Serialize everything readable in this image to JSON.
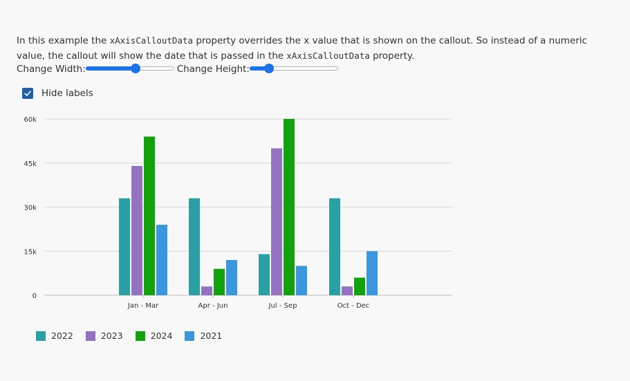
{
  "description": {
    "part1": "In this example the ",
    "code1": "xAxisCalloutData",
    "part2": " property overrides the x value that is shown on the callout. So instead of a numeric value, the callout will show the date that is passed in the ",
    "code2": "xAxisCalloutData",
    "part3": " property."
  },
  "controls": {
    "width_label": "Change Width:",
    "width_value": 0.56,
    "height_label": "Change Height:",
    "height_value": 0.22
  },
  "checkbox": {
    "label": "Hide labels",
    "checked": true,
    "check_icon": "checkmark-icon"
  },
  "colors": {
    "2022": "#2aa0a4",
    "2023": "#9373c0",
    "2024": "#13a10e",
    "2021": "#3a96dd",
    "accent": "#1a73e8"
  },
  "chart_data": {
    "type": "bar",
    "categories": [
      "Jan - Mar",
      "Apr - Jun",
      "Jul - Sep",
      "Oct - Dec"
    ],
    "series": [
      {
        "name": "2022",
        "values": [
          33000,
          33000,
          14000,
          33000
        ]
      },
      {
        "name": "2023",
        "values": [
          44000,
          3000,
          50000,
          3000
        ]
      },
      {
        "name": "2024",
        "values": [
          54000,
          9000,
          60000,
          6000
        ]
      },
      {
        "name": "2021",
        "values": [
          24000,
          12000,
          10000,
          15000
        ]
      }
    ],
    "yticks": [
      0,
      15000,
      30000,
      45000,
      60000
    ],
    "ytick_labels": [
      "0",
      "15k",
      "30k",
      "45k",
      "60k"
    ],
    "ylim": [
      0,
      60000
    ],
    "grid": true,
    "legend_position": "bottom-left"
  }
}
